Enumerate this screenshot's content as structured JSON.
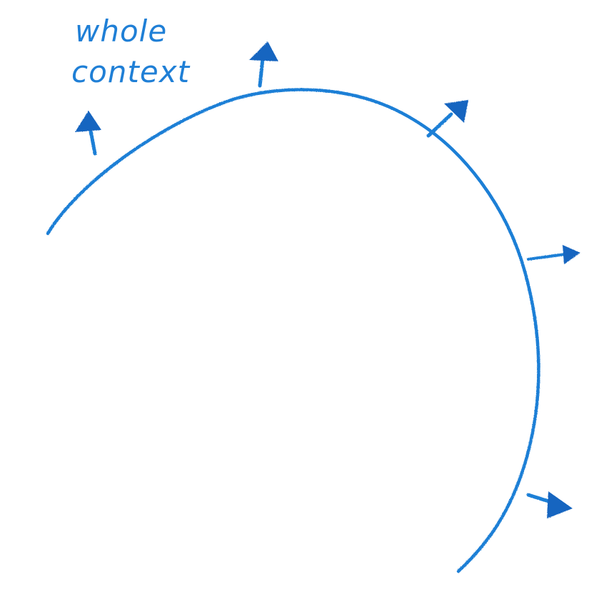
{
  "label": {
    "line1": "whole",
    "line2": "context"
  },
  "colors": {
    "ink": "#1f7fd6",
    "ink_dark": "#1565c0",
    "background": "#ffffff"
  },
  "icons": {
    "arrow": "outward-arrow-icon"
  }
}
